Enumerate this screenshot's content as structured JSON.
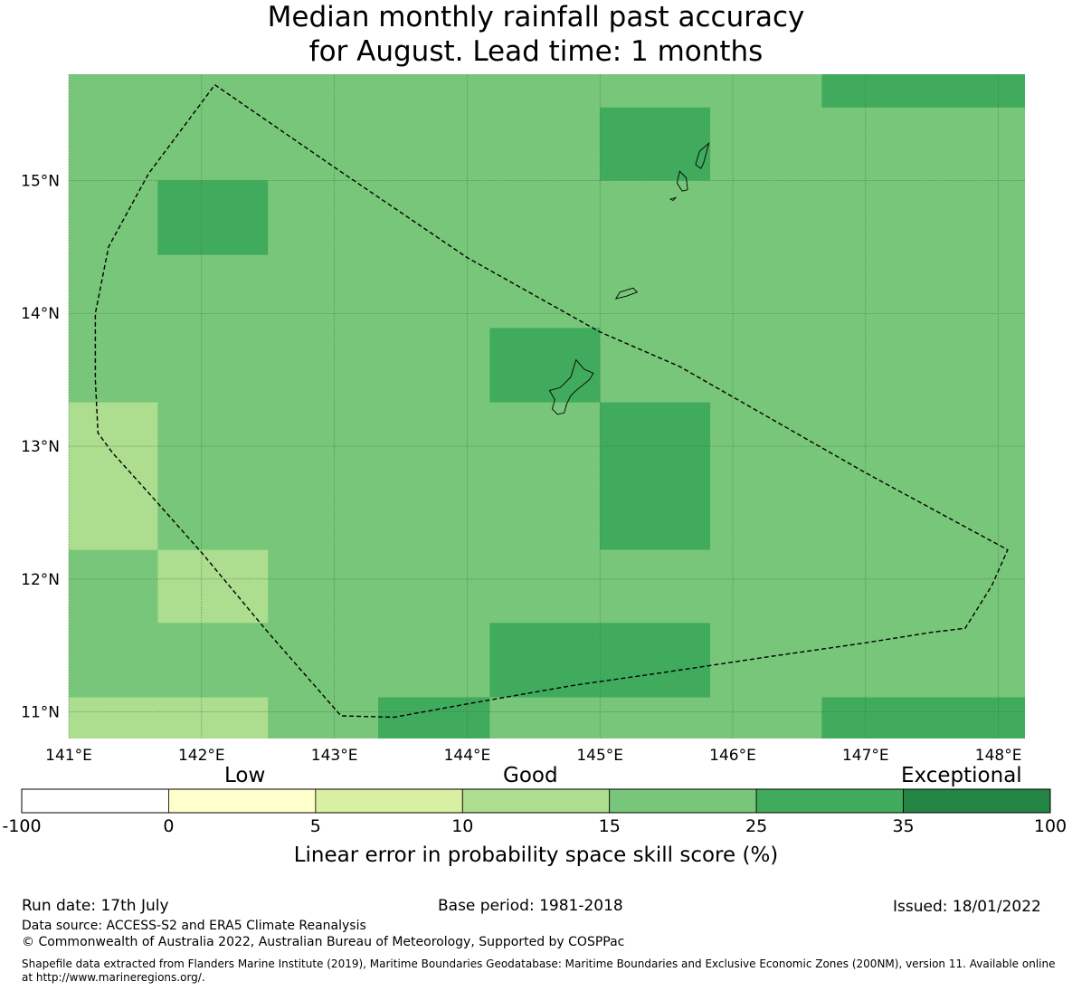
{
  "title_line1": "Median monthly rainfall past accuracy",
  "title_line2": "for August. Lead time: 1 months",
  "map": {
    "lon_range": [
      141.0,
      148.2
    ],
    "lat_range": [
      10.8,
      15.8
    ],
    "lon_ticks": [
      {
        "value": 141,
        "label": "141°E"
      },
      {
        "value": 142,
        "label": "142°E"
      },
      {
        "value": 143,
        "label": "143°E"
      },
      {
        "value": 144,
        "label": "144°E"
      },
      {
        "value": 145,
        "label": "145°E"
      },
      {
        "value": 146,
        "label": "146°E"
      },
      {
        "value": 147,
        "label": "147°E"
      },
      {
        "value": 148,
        "label": "148°E"
      }
    ],
    "lat_ticks": [
      {
        "value": 11,
        "label": "11°N"
      },
      {
        "value": 12,
        "label": "12°N"
      },
      {
        "value": 13,
        "label": "13°N"
      },
      {
        "value": 14,
        "label": "14°N"
      },
      {
        "value": 15,
        "label": "15°N"
      }
    ],
    "background_class": "15-25",
    "cells": [
      {
        "lon0": 146.67,
        "lon1": 148.2,
        "lat0": 15.55,
        "lat1": 15.8,
        "class": "25-35"
      },
      {
        "lon0": 145.0,
        "lon1": 145.83,
        "lat0": 15.0,
        "lat1": 15.55,
        "class": "25-35"
      },
      {
        "lon0": 141.67,
        "lon1": 142.5,
        "lat0": 14.44,
        "lat1": 15.0,
        "class": "25-35"
      },
      {
        "lon0": 144.17,
        "lon1": 145.0,
        "lat0": 13.33,
        "lat1": 13.89,
        "class": "25-35"
      },
      {
        "lon0": 145.0,
        "lon1": 145.83,
        "lat0": 12.22,
        "lat1": 13.33,
        "class": "25-35"
      },
      {
        "lon0": 144.17,
        "lon1": 145.83,
        "lat0": 11.11,
        "lat1": 11.67,
        "class": "25-35"
      },
      {
        "lon0": 143.33,
        "lon1": 144.17,
        "lat0": 10.8,
        "lat1": 11.11,
        "class": "25-35"
      },
      {
        "lon0": 146.67,
        "lon1": 148.2,
        "lat0": 10.8,
        "lat1": 11.11,
        "class": "25-35"
      },
      {
        "lon0": 141.0,
        "lon1": 141.67,
        "lat0": 12.22,
        "lat1": 13.33,
        "class": "10-15"
      },
      {
        "lon0": 141.67,
        "lon1": 142.5,
        "lat0": 11.67,
        "lat1": 12.22,
        "class": "10-15"
      },
      {
        "lon0": 141.0,
        "lon1": 142.5,
        "lat0": 10.8,
        "lat1": 11.11,
        "class": "10-15"
      }
    ],
    "eez_boundary": [
      [
        142.1,
        15.72
      ],
      [
        143.0,
        15.1
      ],
      [
        144.0,
        14.42
      ],
      [
        145.0,
        13.86
      ],
      [
        145.6,
        13.6
      ],
      [
        146.3,
        13.2
      ],
      [
        147.0,
        12.8
      ],
      [
        147.7,
        12.42
      ],
      [
        148.07,
        12.22
      ],
      [
        147.95,
        11.95
      ],
      [
        147.75,
        11.63
      ],
      [
        147.5,
        11.6
      ],
      [
        147.0,
        11.52
      ],
      [
        146.3,
        11.42
      ],
      [
        145.5,
        11.3
      ],
      [
        144.8,
        11.2
      ],
      [
        144.0,
        11.06
      ],
      [
        143.45,
        10.96
      ],
      [
        143.05,
        10.97
      ],
      [
        142.5,
        11.6
      ],
      [
        142.0,
        12.2
      ],
      [
        141.6,
        12.65
      ],
      [
        141.33,
        12.95
      ],
      [
        141.22,
        13.1
      ],
      [
        141.2,
        13.5
      ],
      [
        141.2,
        14.0
      ],
      [
        141.3,
        14.5
      ],
      [
        141.6,
        15.05
      ],
      [
        142.1,
        15.72
      ]
    ],
    "islands": [
      {
        "name": "Guam",
        "coords": [
          [
            144.82,
            13.65
          ],
          [
            144.88,
            13.58
          ],
          [
            144.95,
            13.55
          ],
          [
            144.92,
            13.5
          ],
          [
            144.82,
            13.42
          ],
          [
            144.78,
            13.38
          ],
          [
            144.75,
            13.32
          ],
          [
            144.73,
            13.25
          ],
          [
            144.68,
            13.24
          ],
          [
            144.64,
            13.28
          ],
          [
            144.66,
            13.35
          ],
          [
            144.62,
            13.42
          ],
          [
            144.7,
            13.44
          ],
          [
            144.78,
            13.52
          ],
          [
            144.82,
            13.65
          ]
        ]
      },
      {
        "name": "Rota",
        "coords": [
          [
            145.15,
            14.16
          ],
          [
            145.25,
            14.19
          ],
          [
            145.28,
            14.16
          ],
          [
            145.2,
            14.13
          ],
          [
            145.12,
            14.11
          ],
          [
            145.15,
            14.16
          ]
        ]
      },
      {
        "name": "Saipan",
        "coords": [
          [
            145.82,
            15.28
          ],
          [
            145.75,
            15.22
          ],
          [
            145.72,
            15.12
          ],
          [
            145.76,
            15.09
          ],
          [
            145.78,
            15.13
          ],
          [
            145.82,
            15.28
          ]
        ]
      },
      {
        "name": "Tinian",
        "coords": [
          [
            145.6,
            15.07
          ],
          [
            145.65,
            15.02
          ],
          [
            145.66,
            14.93
          ],
          [
            145.62,
            14.92
          ],
          [
            145.58,
            14.98
          ],
          [
            145.6,
            15.07
          ]
        ]
      },
      {
        "name": "Aguijan",
        "coords": [
          [
            145.53,
            14.86
          ],
          [
            145.57,
            14.87
          ],
          [
            145.55,
            14.85
          ],
          [
            145.53,
            14.86
          ]
        ]
      }
    ]
  },
  "colorbar": {
    "category_labels": [
      "Low",
      "Good",
      "Exceptional"
    ],
    "bins": [
      {
        "from": -100,
        "to": 0,
        "color": "#ffffff"
      },
      {
        "from": 0,
        "to": 5,
        "color": "#ffffcc"
      },
      {
        "from": 5,
        "to": 10,
        "color": "#d9f0a3"
      },
      {
        "from": 10,
        "to": 15,
        "color": "#addd8e"
      },
      {
        "from": 15,
        "to": 25,
        "color": "#78c679"
      },
      {
        "from": 25,
        "to": 35,
        "color": "#41ab5d"
      },
      {
        "from": 35,
        "to": 100,
        "color": "#238443"
      }
    ],
    "tick_labels": [
      "-100",
      "0",
      "5",
      "10",
      "15",
      "25",
      "35",
      "100"
    ],
    "title": "Linear error in probability space skill score (%)"
  },
  "footer": {
    "run_date": "Run date: 17th July",
    "base_period": "Base period: 1981-2018",
    "issued": "Issued: 18/01/2022",
    "data_source": "Data source: ACCESS-S2 and ERA5 Climate Reanalysis",
    "copyright": "© Commonwealth of Australia 2022, Australian Bureau of Meteorology, Supported by COSPPac",
    "shapefile_line1": "Shapefile data extracted from Flanders Marine Institute (2019), Maritime Boundaries Geodatabase: Maritime Boundaries and Exclusive Economic Zones (200NM), version 11. Available online",
    "shapefile_line2": "at http://www.marineregions.org/."
  }
}
